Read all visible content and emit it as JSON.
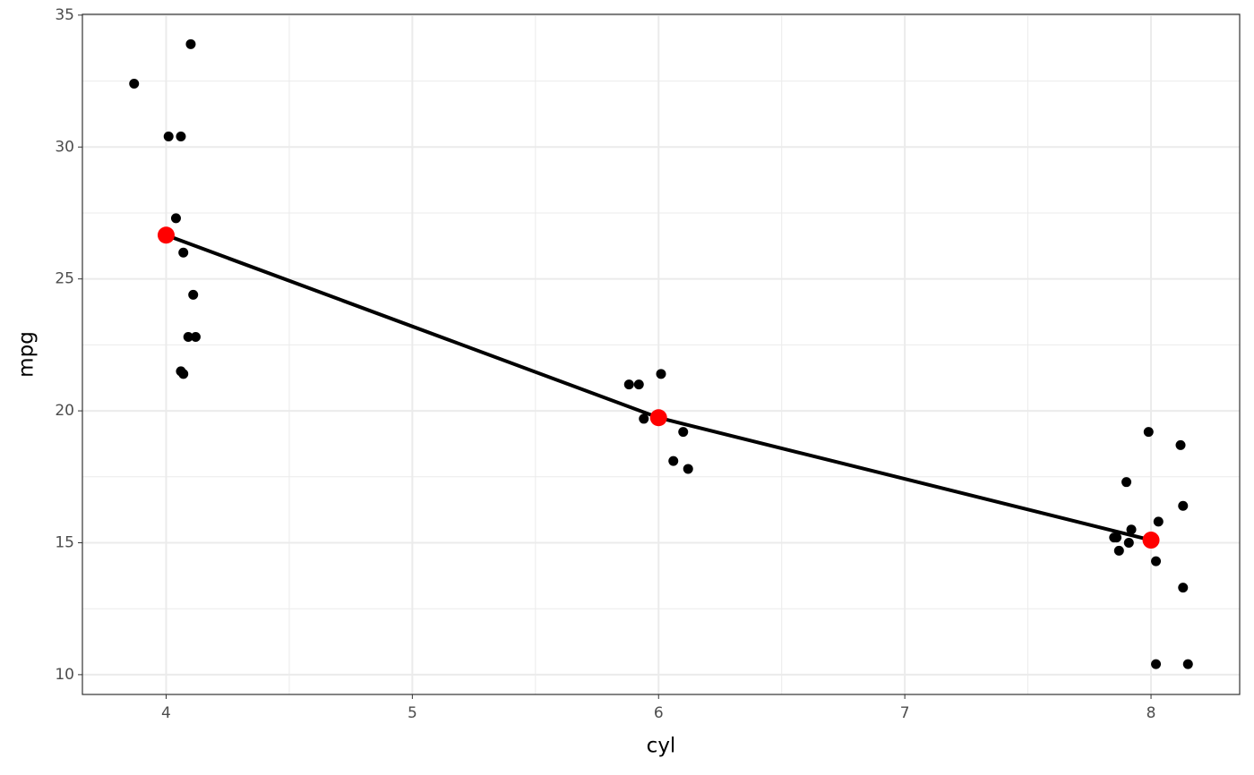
{
  "chart_data": {
    "type": "scatter",
    "x_label": "cyl",
    "y_label": "mpg",
    "xlim": [
      3.66,
      8.36
    ],
    "ylim": [
      9.25,
      35.03
    ],
    "xticks": [
      4,
      5,
      6,
      7,
      8
    ],
    "yticks": [
      10,
      15,
      20,
      25,
      30,
      35
    ],
    "x_minor_grid": [
      4.5,
      5.5,
      6.5,
      7.5
    ],
    "y_minor_grid": [
      12.5,
      17.5,
      22.5,
      27.5,
      32.5
    ],
    "grid": true,
    "points": {
      "color": "#000000",
      "x": [
        3.87,
        4.1,
        4.01,
        4.06,
        4.04,
        4.07,
        4.11,
        4.09,
        4.12,
        4.06,
        4.07,
        5.88,
        5.92,
        6.01,
        5.94,
        6.1,
        6.06,
        6.12,
        7.99,
        8.12,
        7.9,
        8.13,
        8.03,
        7.92,
        7.85,
        7.86,
        7.91,
        7.87,
        8.02,
        8.13,
        8.02,
        8.15
      ],
      "y": [
        32.4,
        33.9,
        30.4,
        30.4,
        27.3,
        26.0,
        24.4,
        22.8,
        22.8,
        21.5,
        21.4,
        21.0,
        21.0,
        21.4,
        19.7,
        19.2,
        18.1,
        17.8,
        19.2,
        18.7,
        17.3,
        16.4,
        15.8,
        15.5,
        15.2,
        15.2,
        15.0,
        14.7,
        14.3,
        13.3,
        10.4,
        10.4
      ]
    },
    "means": {
      "color": "#ff0000",
      "line_color": "#000000",
      "x": [
        4,
        6,
        8
      ],
      "y": [
        26.66,
        19.74,
        15.1
      ]
    }
  }
}
